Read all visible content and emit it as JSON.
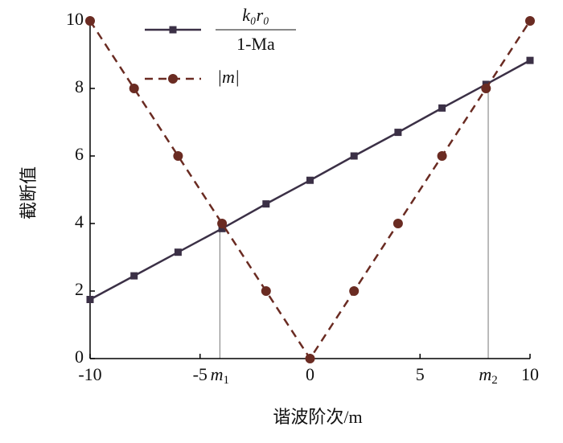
{
  "chart_data": {
    "type": "line",
    "xlabel": "谐波阶次/m",
    "ylabel": "截断值",
    "x": [
      -10,
      -8,
      -6,
      -4,
      -2,
      0,
      2,
      4,
      6,
      8,
      10
    ],
    "series": [
      {
        "name": {
          "numerator": "k₀r₀",
          "denominator": "1-Ma"
        },
        "color": "#3b3046",
        "marker": "square",
        "dash": false,
        "values": [
          1.75,
          2.45,
          3.15,
          3.85,
          4.58,
          5.28,
          6.0,
          6.7,
          7.42,
          8.12,
          8.83
        ]
      },
      {
        "name": "|m|",
        "color": "#6a2b22",
        "marker": "circle",
        "dash": true,
        "values": [
          10,
          8,
          6,
          4,
          2,
          0,
          2,
          4,
          6,
          8,
          10
        ]
      }
    ],
    "annotations": [
      {
        "label": "m",
        "subscript": "1",
        "x": -4.1,
        "y": 3.85
      },
      {
        "label": "m",
        "subscript": "2",
        "x": 8.1,
        "y": 8.12
      }
    ],
    "xlim": [
      -10,
      10
    ],
    "xticks": [
      -10,
      -5,
      0,
      5,
      10
    ],
    "ylim": [
      0,
      10
    ],
    "yticks": [
      0,
      2,
      4,
      6,
      8,
      10
    ],
    "grid": false
  }
}
